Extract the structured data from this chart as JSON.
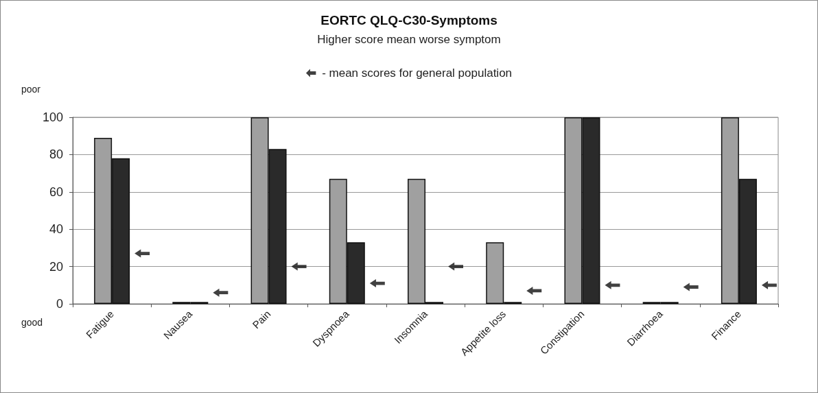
{
  "chart_data": {
    "type": "bar",
    "title": "EORTC QLQ-C30-Symptoms",
    "subtitle": "Higher score mean worse symptom",
    "categories": [
      "Fatigue",
      "Nausea",
      "Pain",
      "Dyspnoea",
      "Insomnia",
      "Appetite loss",
      "Constipation",
      "Diarrhoea",
      "Finance"
    ],
    "series": [
      {
        "color": "#a0a0a0",
        "values": [
          89,
          1,
          100,
          67,
          67,
          33,
          100,
          1,
          100
        ]
      },
      {
        "color": "#2a2a2a",
        "values": [
          78,
          1,
          83,
          33,
          1,
          1,
          100,
          1,
          67
        ]
      },
      {
        "type": "scatter",
        "name": "- mean scores for general population",
        "color": "#111111",
        "x": [
          "Fatigue",
          "Nausea",
          "Pain",
          "Dyspnoea",
          "Insomnia",
          "Appetite loss",
          "Constipation",
          "Diarrhoea",
          "Finance"
        ],
        "values": [
          27,
          6,
          20,
          11,
          20,
          7,
          10,
          9,
          10
        ]
      }
    ],
    "annotations": [
      "poor",
      "good"
    ],
    "ylim": [
      0,
      100
    ],
    "yticks": [
      0,
      20,
      40,
      60,
      80,
      100
    ],
    "grid": "y",
    "legend": "top"
  }
}
